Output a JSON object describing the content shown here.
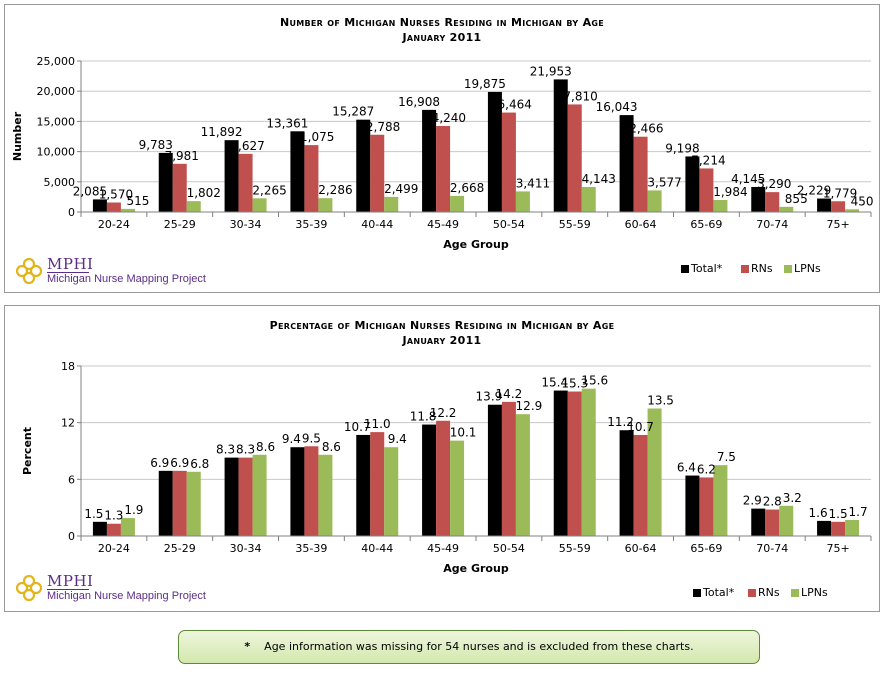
{
  "colors": {
    "total": "#000000",
    "rns": "#c0504d",
    "lpns": "#9bbb59"
  },
  "logo": {
    "name": "MPHI",
    "tagline": "Michigan Nurse Mapping Project",
    "icon": "mphi-logo-icon"
  },
  "legend": {
    "total": "Total*",
    "rns": "RNs",
    "lpns": "LPNs"
  },
  "footnote": {
    "symbol": "*",
    "text": "Age information was missing for 54 nurses and is excluded from these charts."
  },
  "chart_data": [
    {
      "type": "bar",
      "title": "Number of Michigan Nurses Residing in Michigan by Age",
      "subtitle": "January 2011",
      "xlabel": "Age Group",
      "ylabel": "Number",
      "ylim": [
        0,
        25000
      ],
      "yticks": [
        "0",
        "5,000",
        "10,000",
        "15,000",
        "20,000",
        "25,000"
      ],
      "ytick_values": [
        0,
        5000,
        10000,
        15000,
        20000,
        25000
      ],
      "grid": true,
      "legend_position": "bottom-right",
      "categories": [
        "20-24",
        "25-29",
        "30-34",
        "35-39",
        "40-44",
        "45-49",
        "50-54",
        "55-59",
        "60-64",
        "65-69",
        "70-74",
        "75+"
      ],
      "series": [
        {
          "name": "Total*",
          "values": [
            2085,
            9783,
            11892,
            13361,
            15287,
            16908,
            19875,
            21953,
            16043,
            9198,
            4145,
            2229
          ],
          "labels": [
            "2,085",
            "9,783",
            "11,892",
            "13,361",
            "15,287",
            "16,908",
            "19,875",
            "21,953",
            "16,043",
            "9,198",
            "4,145",
            "2,229"
          ]
        },
        {
          "name": "RNs",
          "values": [
            1570,
            7981,
            9627,
            11075,
            12788,
            14240,
            16464,
            17810,
            12466,
            7214,
            3290,
            1779
          ],
          "labels": [
            "1,570",
            "7,981",
            "9,627",
            "11,075",
            "12,788",
            "14,240",
            "16,464",
            "17,810",
            "12,466",
            "7,214",
            "3,290",
            "1,779"
          ]
        },
        {
          "name": "LPNs",
          "values": [
            515,
            1802,
            2265,
            2286,
            2499,
            2668,
            3411,
            4143,
            3577,
            1984,
            855,
            450
          ],
          "labels": [
            "515",
            "1,802",
            "2,265",
            "2,286",
            "2,499",
            "2,668",
            "3,411",
            "4,143",
            "3,577",
            "1,984",
            "855",
            "450"
          ]
        }
      ]
    },
    {
      "type": "bar",
      "title": "Percentage of Michigan Nurses Residing in Michigan by Age",
      "subtitle": "January 2011",
      "xlabel": "Age Group",
      "ylabel": "Percent",
      "ylim": [
        0,
        18
      ],
      "yticks": [
        "0",
        "6",
        "12",
        "18"
      ],
      "ytick_values": [
        0,
        6,
        12,
        18
      ],
      "grid": true,
      "legend_position": "bottom-right",
      "categories": [
        "20-24",
        "25-29",
        "30-34",
        "35-39",
        "40-44",
        "45-49",
        "50-54",
        "55-59",
        "60-64",
        "65-69",
        "70-74",
        "75+"
      ],
      "series": [
        {
          "name": "Total*",
          "values": [
            1.5,
            6.9,
            8.3,
            9.4,
            10.7,
            11.8,
            13.9,
            15.4,
            11.2,
            6.4,
            2.9,
            1.6
          ],
          "labels": [
            "1.5",
            "6.9",
            "8.3",
            "9.4",
            "10.7",
            "11.8",
            "13.9",
            "15.4",
            "11.2",
            "6.4",
            "2.9",
            "1.6"
          ]
        },
        {
          "name": "RNs",
          "values": [
            1.3,
            6.9,
            8.3,
            9.5,
            11.0,
            12.2,
            14.2,
            15.3,
            10.7,
            6.2,
            2.8,
            1.5
          ],
          "labels": [
            "1.3",
            "6.9",
            "8.3",
            "9.5",
            "11.0",
            "12.2",
            "14.2",
            "15.3",
            "10.7",
            "6.2",
            "2.8",
            "1.5"
          ]
        },
        {
          "name": "LPNs",
          "values": [
            1.9,
            6.8,
            8.6,
            8.6,
            9.4,
            10.1,
            12.9,
            15.6,
            13.5,
            7.5,
            3.2,
            1.7
          ],
          "labels": [
            "1.9",
            "6.8",
            "8.6",
            "8.6",
            "9.4",
            "10.1",
            "12.9",
            "15.6",
            "13.5",
            "7.5",
            "3.2",
            "1.7"
          ]
        }
      ]
    }
  ]
}
